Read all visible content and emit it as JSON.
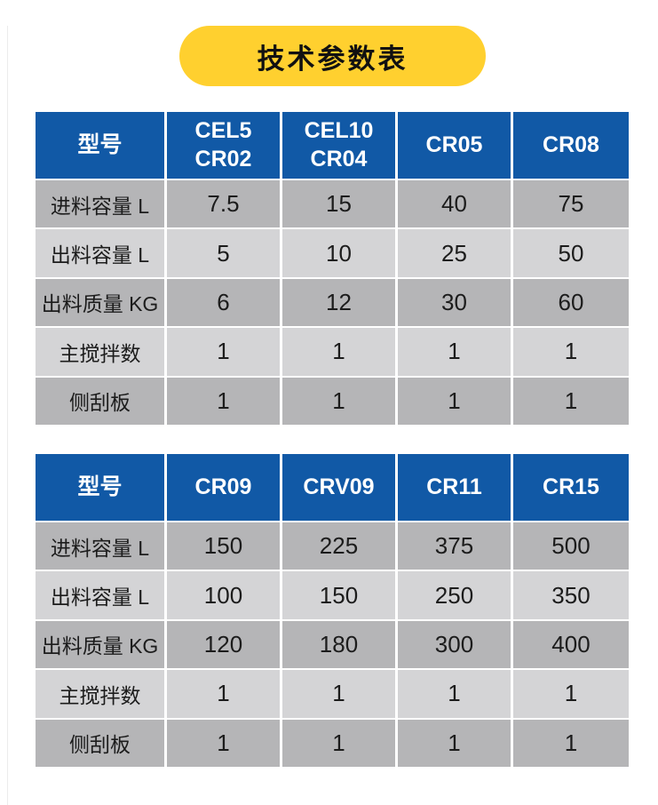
{
  "title": {
    "label": "技术参数表"
  },
  "colors": {
    "title_bg": "#FFD02F",
    "title_text": "#111111",
    "header_bg": "#1159A6",
    "header_text": "#FFFFFF",
    "row_dark": "#B5B5B7",
    "row_light": "#D4D4D6",
    "cell_text": "#1C1C1C",
    "divider": "#FFFFFF",
    "page_bg": "#FFFFFF"
  },
  "tables": [
    {
      "header": [
        "型号",
        "CEL5\nCR02",
        "CEL10\nCR04",
        "CR05",
        "CR08"
      ],
      "rows": [
        {
          "label": "进料容量 L",
          "values": [
            "7.5",
            "15",
            "40",
            "75"
          ]
        },
        {
          "label": "出料容量 L",
          "values": [
            "5",
            "10",
            "25",
            "50"
          ]
        },
        {
          "label": "出料质量 KG",
          "values": [
            "6",
            "12",
            "30",
            "60"
          ]
        },
        {
          "label": "主搅拌数",
          "values": [
            "1",
            "1",
            "1",
            "1"
          ]
        },
        {
          "label": "侧刮板",
          "values": [
            "1",
            "1",
            "1",
            "1"
          ]
        }
      ]
    },
    {
      "header": [
        "型号",
        "CR09",
        "CRV09",
        "CR11",
        "CR15"
      ],
      "rows": [
        {
          "label": "进料容量 L",
          "values": [
            "150",
            "225",
            "375",
            "500"
          ]
        },
        {
          "label": "出料容量 L",
          "values": [
            "100",
            "150",
            "250",
            "350"
          ]
        },
        {
          "label": "出料质量 KG",
          "values": [
            "120",
            "180",
            "300",
            "400"
          ]
        },
        {
          "label": "主搅拌数",
          "values": [
            "1",
            "1",
            "1",
            "1"
          ]
        },
        {
          "label": "侧刮板",
          "values": [
            "1",
            "1",
            "1",
            "1"
          ]
        }
      ]
    }
  ]
}
